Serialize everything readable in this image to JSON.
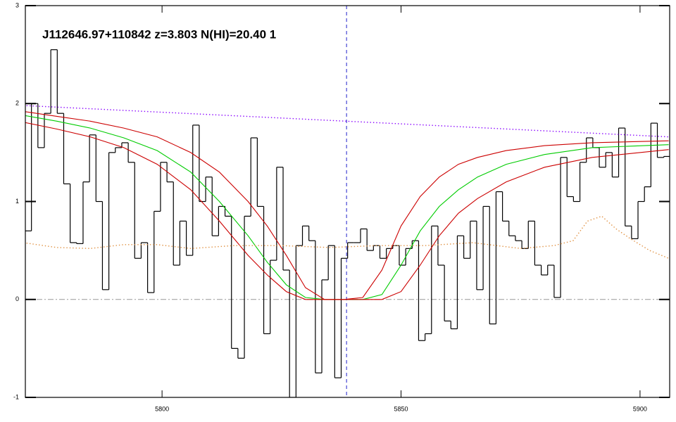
{
  "chart_data": {
    "type": "line",
    "title": "J112646.97+110842 z=3.803 N(HI)=20.40 1",
    "xlim": [
      5771.4,
      5906.2
    ],
    "ylim": [
      -1,
      3
    ],
    "xticks": [
      5800,
      5850,
      5900
    ],
    "yticks": [
      -1,
      0,
      1,
      2,
      3
    ],
    "zero_line": 0,
    "marker_x": 5838.6,
    "series": [
      {
        "style": "step",
        "color": "#000000",
        "x": [
          5772.0,
          5773.35,
          5774.7,
          5776.05,
          5777.4,
          5778.75,
          5780.1,
          5781.45,
          5782.8,
          5784.15,
          5785.5,
          5786.85,
          5788.2,
          5789.55,
          5790.9,
          5792.25,
          5793.6,
          5794.95,
          5796.3,
          5797.65,
          5799.0,
          5800.35,
          5801.7,
          5803.05,
          5804.4,
          5805.75,
          5807.1,
          5808.45,
          5809.8,
          5811.15,
          5812.5,
          5813.85,
          5815.2,
          5816.55,
          5817.9,
          5819.25,
          5820.6,
          5821.95,
          5823.3,
          5824.65,
          5826.0,
          5827.35,
          5828.7,
          5830.05,
          5831.4,
          5832.75,
          5834.1,
          5835.45,
          5836.8,
          5838.15,
          5839.5,
          5840.85,
          5842.2,
          5843.55,
          5844.9,
          5846.25,
          5847.6,
          5848.95,
          5850.3,
          5851.65,
          5853.0,
          5854.35,
          5855.7,
          5857.05,
          5858.4,
          5859.75,
          5861.1,
          5862.45,
          5863.8,
          5865.15,
          5866.5,
          5867.85,
          5869.2,
          5870.55,
          5871.9,
          5873.25,
          5874.6,
          5875.95,
          5877.3,
          5878.65,
          5880.0,
          5881.35,
          5882.7,
          5884.05,
          5885.4,
          5886.75,
          5888.1,
          5889.45,
          5890.8,
          5892.15,
          5893.5,
          5894.85,
          5896.2,
          5897.55,
          5898.9,
          5900.25,
          5901.6,
          5902.95,
          5904.3,
          5905.65
        ],
        "values": [
          0.7,
          2.0,
          1.55,
          1.9,
          2.55,
          1.9,
          1.18,
          0.58,
          0.57,
          1.2,
          1.68,
          1.0,
          0.1,
          1.5,
          1.55,
          1.6,
          1.4,
          0.42,
          0.58,
          0.07,
          0.9,
          1.4,
          1.2,
          0.35,
          0.8,
          0.45,
          1.78,
          1.0,
          1.25,
          0.65,
          0.95,
          0.85,
          -0.5,
          -0.6,
          0.85,
          1.65,
          0.95,
          -0.35,
          0.4,
          1.35,
          0.3,
          -1.0,
          0.55,
          0.75,
          0.6,
          -0.75,
          0.2,
          0.55,
          -0.8,
          0.42,
          0.58,
          0.58,
          0.72,
          0.5,
          0.55,
          0.42,
          0.52,
          0.55,
          0.35,
          0.52,
          0.6,
          -0.42,
          -0.35,
          0.75,
          0.35,
          -0.22,
          -0.3,
          0.65,
          0.42,
          0.8,
          0.1,
          0.95,
          -0.25,
          1.1,
          0.8,
          0.65,
          0.6,
          0.52,
          0.8,
          0.35,
          0.25,
          0.35,
          0.02,
          1.45,
          1.05,
          1.0,
          1.4,
          1.65,
          1.55,
          1.35,
          1.5,
          1.25,
          1.75,
          0.75,
          0.62,
          1.0,
          1.15,
          1.8,
          1.45,
          1.46
        ]
      },
      {
        "style": "solid",
        "color": "#00cc00",
        "x": [
          5771,
          5778,
          5785,
          5792,
          5799,
          5806,
          5812,
          5818,
          5822,
          5826,
          5830,
          5834,
          5838,
          5842,
          5846,
          5850,
          5854,
          5858,
          5862,
          5866,
          5872,
          5880,
          5890,
          5906
        ],
        "values": [
          1.88,
          1.82,
          1.75,
          1.65,
          1.52,
          1.3,
          1.0,
          0.65,
          0.38,
          0.15,
          0.02,
          0,
          0,
          0,
          0.05,
          0.35,
          0.7,
          0.95,
          1.12,
          1.25,
          1.38,
          1.48,
          1.55,
          1.58
        ]
      },
      {
        "style": "solid",
        "color": "#cc0000",
        "x": [
          5771,
          5778,
          5785,
          5792,
          5799,
          5806,
          5812,
          5818,
          5822,
          5826,
          5830,
          5834,
          5838,
          5842,
          5846,
          5850,
          5854,
          5858,
          5862,
          5866,
          5872,
          5880,
          5890,
          5906
        ],
        "values": [
          1.92,
          1.87,
          1.82,
          1.75,
          1.66,
          1.5,
          1.3,
          1.0,
          0.75,
          0.45,
          0.12,
          0,
          0,
          0.02,
          0.3,
          0.75,
          1.05,
          1.25,
          1.38,
          1.45,
          1.52,
          1.57,
          1.6,
          1.62
        ]
      },
      {
        "style": "solid",
        "color": "#cc0000",
        "x": [
          5771,
          5778,
          5785,
          5792,
          5799,
          5806,
          5812,
          5818,
          5822,
          5826,
          5830,
          5834,
          5838,
          5842,
          5846,
          5850,
          5854,
          5858,
          5862,
          5866,
          5872,
          5880,
          5890,
          5906
        ],
        "values": [
          1.81,
          1.74,
          1.66,
          1.55,
          1.38,
          1.12,
          0.8,
          0.45,
          0.25,
          0.08,
          0,
          0,
          0,
          0,
          0,
          0.08,
          0.35,
          0.65,
          0.88,
          1.03,
          1.2,
          1.35,
          1.45,
          1.53
        ]
      },
      {
        "style": "dotted",
        "color": "#8800ff",
        "x": [
          5771,
          5906
        ],
        "values": [
          1.98,
          1.66
        ]
      },
      {
        "style": "dotted",
        "color": "#e09040",
        "x": [
          5771,
          5778,
          5785,
          5792,
          5799,
          5806,
          5815,
          5825,
          5835,
          5845,
          5855,
          5865,
          5875,
          5882,
          5886,
          5889,
          5892,
          5895,
          5898,
          5902,
          5906
        ],
        "values": [
          0.58,
          0.53,
          0.52,
          0.56,
          0.56,
          0.52,
          0.55,
          0.55,
          0.53,
          0.55,
          0.55,
          0.58,
          0.52,
          0.55,
          0.6,
          0.8,
          0.85,
          0.72,
          0.62,
          0.5,
          0.42
        ]
      }
    ]
  }
}
